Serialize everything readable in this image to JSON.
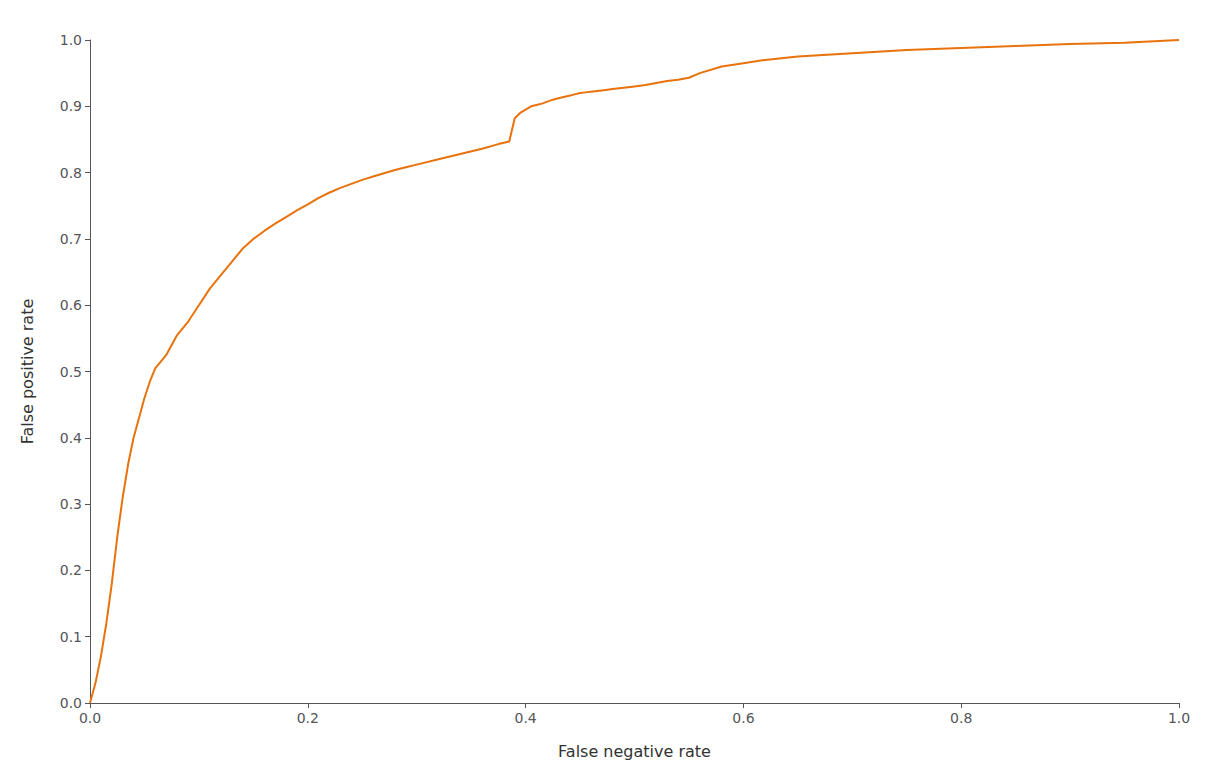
{
  "chart_data": {
    "type": "line",
    "xlabel": "False negative rate",
    "ylabel": "False positive rate",
    "color": "#E8720C",
    "grid": false,
    "xlim": [
      0,
      1.0
    ],
    "ylim": [
      0,
      1.0
    ],
    "xticks": [
      {
        "value": 0.0,
        "label": "0.0"
      },
      0.2,
      0.4,
      0.6,
      0.8,
      {
        "value": 1.0,
        "label": "1.0"
      }
    ],
    "yticks": [
      {
        "value": 0.0,
        "label": "0.0"
      },
      0.1,
      0.2,
      0.3,
      0.4,
      0.5,
      0.6,
      0.7,
      0.8,
      0.9,
      {
        "value": 1.0,
        "label": "1.0"
      }
    ],
    "x": [
      0.0,
      0.005,
      0.01,
      0.015,
      0.02,
      0.025,
      0.03,
      0.035,
      0.04,
      0.045,
      0.05,
      0.055,
      0.06,
      0.065,
      0.07,
      0.075,
      0.08,
      0.09,
      0.1,
      0.11,
      0.12,
      0.13,
      0.14,
      0.15,
      0.16,
      0.17,
      0.18,
      0.19,
      0.2,
      0.21,
      0.22,
      0.23,
      0.24,
      0.25,
      0.26,
      0.27,
      0.28,
      0.29,
      0.3,
      0.32,
      0.34,
      0.36,
      0.375,
      0.385,
      0.39,
      0.395,
      0.4,
      0.405,
      0.41,
      0.415,
      0.42,
      0.425,
      0.43,
      0.435,
      0.44,
      0.445,
      0.45,
      0.455,
      0.46,
      0.47,
      0.48,
      0.49,
      0.5,
      0.51,
      0.52,
      0.53,
      0.54,
      0.55,
      0.56,
      0.58,
      0.6,
      0.62,
      0.65,
      0.7,
      0.75,
      0.8,
      0.85,
      0.9,
      0.95,
      1.0
    ],
    "values": [
      0.0,
      0.03,
      0.07,
      0.12,
      0.18,
      0.25,
      0.31,
      0.36,
      0.4,
      0.43,
      0.46,
      0.485,
      0.505,
      0.515,
      0.525,
      0.54,
      0.555,
      0.575,
      0.6,
      0.625,
      0.645,
      0.665,
      0.685,
      0.7,
      0.712,
      0.723,
      0.733,
      0.743,
      0.752,
      0.762,
      0.77,
      0.777,
      0.783,
      0.789,
      0.794,
      0.799,
      0.804,
      0.808,
      0.812,
      0.82,
      0.828,
      0.836,
      0.843,
      0.847,
      0.882,
      0.89,
      0.895,
      0.9,
      0.902,
      0.904,
      0.907,
      0.91,
      0.912,
      0.914,
      0.916,
      0.918,
      0.92,
      0.921,
      0.922,
      0.924,
      0.926,
      0.928,
      0.93,
      0.932,
      0.935,
      0.938,
      0.94,
      0.943,
      0.95,
      0.96,
      0.965,
      0.97,
      0.975,
      0.98,
      0.985,
      0.988,
      0.991,
      0.994,
      0.996,
      1.0
    ]
  }
}
